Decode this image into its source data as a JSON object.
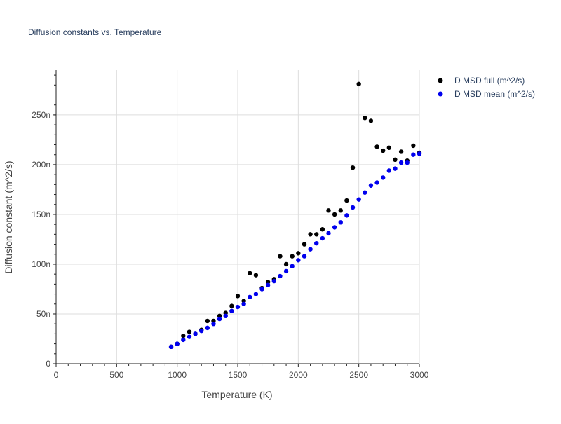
{
  "chart_data": {
    "type": "scatter",
    "title": "Diffusion constants vs. Temperature",
    "xlabel": "Temperature (K)",
    "ylabel": "Diffusion constant (m^2/s)",
    "xlim": [
      0,
      3000
    ],
    "ylim": [
      0,
      2.95e-07
    ],
    "x_ticks": [
      0,
      500,
      1000,
      1500,
      2000,
      2500,
      3000
    ],
    "x_tick_labels": [
      "0",
      "500",
      "1000",
      "1500",
      "2000",
      "2500",
      "3000"
    ],
    "y_ticks": [
      0,
      5e-08,
      1e-07,
      1.5e-07,
      2e-07,
      2.5e-07
    ],
    "y_tick_labels": [
      "0",
      "50n",
      "100n",
      "150n",
      "200n",
      "250n"
    ],
    "grid": true,
    "legend_position": "top-right",
    "series": [
      {
        "name": "D MSD full (m^2/s)",
        "color": "#000000",
        "x": [
          950,
          1000,
          1050,
          1100,
          1150,
          1200,
          1250,
          1300,
          1350,
          1400,
          1450,
          1500,
          1550,
          1600,
          1650,
          1700,
          1750,
          1800,
          1850,
          1900,
          1950,
          2000,
          2050,
          2100,
          2150,
          2200,
          2250,
          2300,
          2350,
          2400,
          2450,
          2500,
          2550,
          2600,
          2650,
          2700,
          2750,
          2800,
          2850,
          2900,
          2950,
          3000
        ],
        "y": [
          1.7e-08,
          2e-08,
          2.8e-08,
          3.2e-08,
          3e-08,
          3.4e-08,
          4.3e-08,
          4.3e-08,
          4.8e-08,
          5.1e-08,
          5.8e-08,
          6.8e-08,
          6.3e-08,
          9.1e-08,
          8.9e-08,
          7.6e-08,
          8.2e-08,
          8.5e-08,
          1.08e-07,
          1e-07,
          1.08e-07,
          1.11e-07,
          1.2e-07,
          1.3e-07,
          1.3e-07,
          1.35e-07,
          1.54e-07,
          1.5e-07,
          1.54e-07,
          1.64e-07,
          1.97e-07,
          2.81e-07,
          2.47e-07,
          2.44e-07,
          2.18e-07,
          2.14e-07,
          2.17e-07,
          2.05e-07,
          2.13e-07,
          2.04e-07,
          2.19e-07,
          2.12e-07
        ]
      },
      {
        "name": "D MSD mean (m^2/s)",
        "color": "#0000ee",
        "x": [
          950,
          1000,
          1050,
          1100,
          1150,
          1200,
          1250,
          1300,
          1350,
          1400,
          1450,
          1500,
          1550,
          1600,
          1650,
          1700,
          1750,
          1800,
          1850,
          1900,
          1950,
          2000,
          2050,
          2100,
          2150,
          2200,
          2250,
          2300,
          2350,
          2400,
          2450,
          2500,
          2550,
          2600,
          2650,
          2700,
          2750,
          2800,
          2850,
          2900,
          2950,
          3000
        ],
        "y": [
          1.7e-08,
          2e-08,
          2.4e-08,
          2.7e-08,
          3e-08,
          3.3e-08,
          3.6e-08,
          4e-08,
          4.5e-08,
          4.8e-08,
          5.3e-08,
          5.7e-08,
          6e-08,
          6.7e-08,
          7e-08,
          7.5e-08,
          7.9e-08,
          8.3e-08,
          8.8e-08,
          9.3e-08,
          9.8e-08,
          1.04e-07,
          1.08e-07,
          1.15e-07,
          1.21e-07,
          1.26e-07,
          1.31e-07,
          1.37e-07,
          1.42e-07,
          1.49e-07,
          1.57e-07,
          1.65e-07,
          1.72e-07,
          1.79e-07,
          1.82e-07,
          1.87e-07,
          1.94e-07,
          1.96e-07,
          2.02e-07,
          2.02e-07,
          2.1e-07,
          2.11e-07
        ]
      }
    ]
  }
}
